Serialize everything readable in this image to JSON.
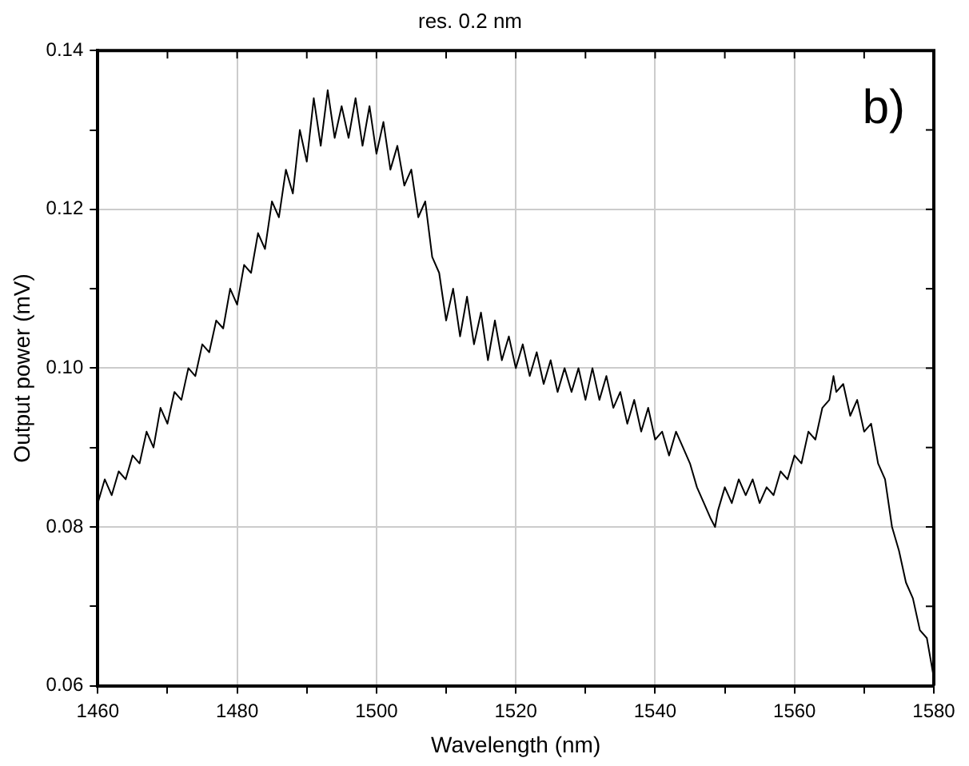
{
  "chart_data": {
    "type": "line",
    "title": "res. 0.2 nm",
    "xlabel": "Wavelength (nm)",
    "ylabel": "Output power (mV)",
    "annotations": [
      "b)"
    ],
    "x": [
      1460,
      1461,
      1462,
      1463,
      1464,
      1465,
      1466,
      1467,
      1468,
      1469,
      1470,
      1471,
      1472,
      1473,
      1474,
      1475,
      1476,
      1477,
      1478,
      1479,
      1480,
      1481,
      1482,
      1483,
      1484,
      1485,
      1486,
      1487,
      1488,
      1489,
      1490,
      1491,
      1492,
      1493,
      1494,
      1495,
      1496,
      1497,
      1498,
      1499,
      1500,
      1501,
      1502,
      1503,
      1504,
      1505,
      1506,
      1507,
      1508,
      1509,
      1510,
      1511,
      1512,
      1513,
      1514,
      1515,
      1516,
      1517,
      1518,
      1519,
      1520,
      1521,
      1522,
      1523,
      1524,
      1525,
      1526,
      1527,
      1528,
      1529,
      1530,
      1531,
      1532,
      1533,
      1534,
      1535,
      1536,
      1537,
      1538,
      1539,
      1540,
      1541,
      1542,
      1543,
      1544,
      1545,
      1546,
      1547,
      1548,
      1548.6,
      1549,
      1550,
      1551,
      1552,
      1553,
      1554,
      1555,
      1556,
      1557,
      1558,
      1559,
      1560,
      1561,
      1562,
      1563,
      1564,
      1565,
      1565.6,
      1566,
      1567,
      1568,
      1569,
      1570,
      1571,
      1572,
      1573,
      1574,
      1575,
      1576,
      1577,
      1578,
      1579,
      1580
    ],
    "series": [
      {
        "color": "#000000",
        "values": [
          0.083,
          0.086,
          0.084,
          0.087,
          0.086,
          0.089,
          0.088,
          0.092,
          0.09,
          0.095,
          0.093,
          0.097,
          0.096,
          0.1,
          0.099,
          0.103,
          0.102,
          0.106,
          0.105,
          0.11,
          0.108,
          0.113,
          0.112,
          0.117,
          0.115,
          0.121,
          0.119,
          0.125,
          0.122,
          0.13,
          0.126,
          0.134,
          0.128,
          0.135,
          0.129,
          0.133,
          0.129,
          0.134,
          0.128,
          0.133,
          0.127,
          0.131,
          0.125,
          0.128,
          0.123,
          0.125,
          0.119,
          0.121,
          0.114,
          0.112,
          0.106,
          0.11,
          0.104,
          0.109,
          0.103,
          0.107,
          0.101,
          0.106,
          0.101,
          0.104,
          0.1,
          0.103,
          0.099,
          0.102,
          0.098,
          0.101,
          0.097,
          0.1,
          0.097,
          0.1,
          0.096,
          0.1,
          0.096,
          0.099,
          0.095,
          0.097,
          0.093,
          0.096,
          0.092,
          0.095,
          0.091,
          0.092,
          0.089,
          0.092,
          0.09,
          0.088,
          0.085,
          0.083,
          0.081,
          0.08,
          0.082,
          0.085,
          0.083,
          0.086,
          0.084,
          0.086,
          0.083,
          0.085,
          0.084,
          0.087,
          0.086,
          0.089,
          0.088,
          0.092,
          0.091,
          0.095,
          0.096,
          0.099,
          0.097,
          0.098,
          0.094,
          0.096,
          0.092,
          0.093,
          0.088,
          0.086,
          0.08,
          0.077,
          0.073,
          0.071,
          0.067,
          0.066,
          0.061
        ]
      }
    ],
    "xlim": [
      1460,
      1580
    ],
    "xticks": [
      1460,
      {
        "value": 1470,
        "label": null
      },
      1480,
      {
        "value": 1490,
        "label": null
      },
      1500,
      {
        "value": 1510,
        "label": null
      },
      1520,
      {
        "value": 1530,
        "label": null
      },
      1540,
      {
        "value": 1550,
        "label": null
      },
      1560,
      {
        "value": 1570,
        "label": null
      },
      1580
    ],
    "ylim": [
      0.06,
      0.14
    ],
    "yticks": [
      0.06,
      {
        "value": 0.07,
        "label": null
      },
      0.08,
      {
        "value": 0.09,
        "label": null
      },
      {
        "value": 0.1,
        "label": "0.10"
      },
      {
        "value": 0.11,
        "label": null
      },
      0.12,
      {
        "value": 0.13,
        "label": null
      },
      0.14
    ],
    "grid": true,
    "legend": false,
    "marker": "none",
    "line_style": "solid"
  }
}
